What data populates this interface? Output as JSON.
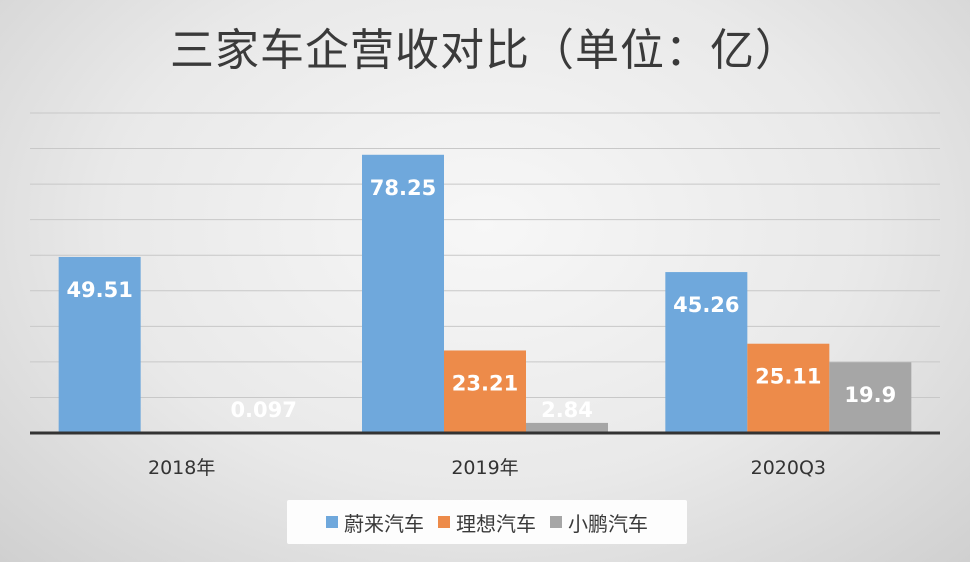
{
  "chart_data": {
    "type": "bar",
    "title": "三家车企营收对比（单位：亿）",
    "categories": [
      "2018年",
      "2019年",
      "2020Q3"
    ],
    "series": [
      {
        "name": "蔚来汽车",
        "color": "#6fa8dc",
        "values": [
          49.51,
          78.25,
          45.26
        ],
        "labels": [
          "49.51",
          "78.25",
          "45.26"
        ]
      },
      {
        "name": "理想汽车",
        "color": "#ed8b4a",
        "values": [
          null,
          23.21,
          25.11
        ],
        "labels": [
          "",
          "23.21",
          "25.11"
        ]
      },
      {
        "name": "小鹏汽车",
        "color": "#a6a6a6",
        "values": [
          0.097,
          2.84,
          19.9
        ],
        "labels": [
          "0.097",
          "2.84",
          "19.9"
        ]
      }
    ],
    "ylim": [
      0,
      90
    ],
    "grid": true,
    "legend_position": "bottom"
  }
}
